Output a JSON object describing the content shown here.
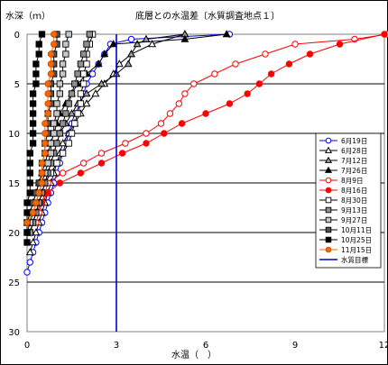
{
  "chart_data": {
    "type": "line",
    "title": "底層との水温差〔水質調査地点１〕",
    "ylabel": "水深（ｍ）",
    "xlabel": "水温（　）",
    "xlim": [
      0,
      12
    ],
    "ylim": [
      0,
      30
    ],
    "y_inverted": true,
    "x_ticks": [
      0,
      3,
      6,
      9,
      12
    ],
    "y_ticks": [
      0,
      5,
      10,
      15,
      20,
      25,
      30
    ],
    "grid": "horizontal",
    "legend_position": "right",
    "target_line": {
      "name": "水質目標",
      "x": 3,
      "color": "#0000cc"
    },
    "series": [
      {
        "name": "6月19日",
        "color": "#0000ff",
        "marker": "circle-open",
        "points": [
          [
            6.8,
            0
          ],
          [
            3.5,
            0.5
          ],
          [
            2.8,
            1
          ],
          [
            2.6,
            2
          ],
          [
            2.4,
            3
          ],
          [
            2.2,
            4
          ],
          [
            2.0,
            5
          ],
          [
            1.9,
            6
          ],
          [
            1.8,
            7
          ],
          [
            1.6,
            8
          ],
          [
            1.5,
            9
          ],
          [
            1.4,
            10
          ],
          [
            1.3,
            11
          ],
          [
            1.2,
            12
          ],
          [
            1.1,
            13
          ],
          [
            1.0,
            14
          ],
          [
            0.9,
            15
          ],
          [
            0.8,
            16
          ],
          [
            0.7,
            17
          ],
          [
            0.6,
            18
          ],
          [
            0.5,
            19
          ],
          [
            0.4,
            20
          ],
          [
            0.3,
            21
          ],
          [
            0.2,
            22
          ],
          [
            0.1,
            23
          ],
          [
            0,
            24
          ]
        ]
      },
      {
        "name": "6月28日",
        "color": "#000000",
        "marker": "triangle-open",
        "points": [
          [
            5.3,
            0
          ],
          [
            4.2,
            1
          ],
          [
            3.5,
            2
          ],
          [
            3.1,
            3
          ],
          [
            2.9,
            4
          ],
          [
            2.6,
            5
          ],
          [
            2.3,
            6
          ],
          [
            2.0,
            7
          ],
          [
            1.8,
            8
          ],
          [
            1.6,
            9
          ],
          [
            1.4,
            10
          ],
          [
            1.2,
            11
          ],
          [
            1.1,
            12
          ],
          [
            1.0,
            13
          ],
          [
            0.9,
            14
          ],
          [
            0.8,
            15
          ],
          [
            0.7,
            16
          ],
          [
            0.6,
            17
          ],
          [
            0.5,
            18
          ],
          [
            0.4,
            19
          ],
          [
            0.3,
            20
          ],
          [
            0.2,
            21
          ],
          [
            0.1,
            22
          ]
        ]
      },
      {
        "name": "7月12日",
        "color": "#000000",
        "marker": "triangle-gray",
        "points": [
          [
            5.3,
            0
          ],
          [
            4.0,
            0.5
          ],
          [
            3.7,
            1
          ],
          [
            3.5,
            2
          ],
          [
            3.4,
            3
          ],
          [
            3.0,
            4
          ],
          [
            2.5,
            5
          ],
          [
            2.0,
            6
          ],
          [
            1.7,
            7
          ],
          [
            1.5,
            8
          ],
          [
            1.3,
            9
          ],
          [
            1.1,
            10
          ],
          [
            1.0,
            11
          ],
          [
            0.9,
            12
          ],
          [
            0.8,
            13
          ],
          [
            0.7,
            14
          ],
          [
            0.6,
            15
          ],
          [
            0.5,
            16
          ],
          [
            0.4,
            17
          ],
          [
            0.3,
            18
          ],
          [
            0.2,
            19
          ],
          [
            0.1,
            20
          ]
        ]
      },
      {
        "name": "7月26日",
        "color": "#000000",
        "marker": "triangle-filled",
        "points": [
          [
            6.7,
            0
          ],
          [
            5.3,
            0.5
          ],
          [
            2.9,
            1
          ],
          [
            2.6,
            2
          ],
          [
            2.4,
            3
          ],
          [
            2.0,
            4
          ],
          [
            1.7,
            5
          ],
          [
            1.5,
            6
          ],
          [
            1.3,
            7
          ],
          [
            1.1,
            8
          ],
          [
            1.0,
            9
          ],
          [
            0.9,
            10
          ],
          [
            0.8,
            11
          ],
          [
            0.7,
            12
          ],
          [
            0.6,
            13
          ],
          [
            0.5,
            14
          ],
          [
            0.4,
            15
          ],
          [
            0.3,
            16
          ],
          [
            0.2,
            17
          ],
          [
            0.1,
            18
          ]
        ]
      },
      {
        "name": "8月9日",
        "color": "#ff0000",
        "marker": "circle-open",
        "points": [
          [
            12.1,
            0
          ],
          [
            11.0,
            0.5
          ],
          [
            9.0,
            1
          ],
          [
            8.0,
            2
          ],
          [
            7.0,
            3
          ],
          [
            6.3,
            4
          ],
          [
            5.6,
            5
          ],
          [
            5.3,
            6
          ],
          [
            5.1,
            7
          ],
          [
            4.8,
            8
          ],
          [
            4.5,
            9
          ],
          [
            4.0,
            10
          ],
          [
            3.3,
            11
          ],
          [
            2.5,
            12
          ],
          [
            1.9,
            13
          ],
          [
            1.2,
            14
          ],
          [
            0.7,
            15
          ],
          [
            0.6,
            16
          ],
          [
            0.5,
            17
          ],
          [
            0.4,
            18
          ],
          [
            0.3,
            19
          ]
        ]
      },
      {
        "name": "8月16日",
        "color": "#ff0000",
        "marker": "circle-filled",
        "points": [
          [
            12.0,
            0
          ],
          [
            10.5,
            1
          ],
          [
            9.5,
            2
          ],
          [
            8.8,
            3
          ],
          [
            8.2,
            4
          ],
          [
            7.8,
            5
          ],
          [
            7.4,
            6
          ],
          [
            6.8,
            7
          ],
          [
            6.0,
            8
          ],
          [
            5.2,
            9
          ],
          [
            4.6,
            10
          ],
          [
            4.0,
            11
          ],
          [
            3.2,
            12
          ],
          [
            2.5,
            13
          ],
          [
            1.8,
            14
          ],
          [
            1.1,
            15
          ],
          [
            0.7,
            16
          ],
          [
            0.5,
            17
          ],
          [
            0.3,
            18
          ]
        ]
      },
      {
        "name": "8月30日",
        "color": "#000000",
        "marker": "square-open",
        "points": [
          [
            2.2,
            0
          ],
          [
            2.1,
            1
          ],
          [
            2.0,
            2
          ],
          [
            2.0,
            3
          ],
          [
            1.9,
            4
          ],
          [
            1.9,
            5
          ],
          [
            1.8,
            6
          ],
          [
            1.8,
            7
          ],
          [
            1.7,
            8
          ],
          [
            1.6,
            9
          ],
          [
            1.5,
            10
          ],
          [
            1.4,
            11
          ],
          [
            1.2,
            12
          ],
          [
            1.0,
            13
          ],
          [
            0.8,
            14
          ],
          [
            0.6,
            15
          ],
          [
            0.5,
            16
          ],
          [
            0.4,
            17
          ],
          [
            0.3,
            18
          ],
          [
            0.2,
            19
          ],
          [
            0.1,
            20
          ]
        ]
      },
      {
        "name": "9月13日",
        "color": "#000000",
        "marker": "square-gray",
        "points": [
          [
            2.1,
            0
          ],
          [
            2.0,
            1
          ],
          [
            1.9,
            2
          ],
          [
            1.8,
            3
          ],
          [
            1.7,
            4
          ],
          [
            1.6,
            5
          ],
          [
            1.5,
            6
          ],
          [
            1.4,
            7
          ],
          [
            1.3,
            8
          ],
          [
            1.2,
            9
          ],
          [
            1.1,
            10
          ],
          [
            1.0,
            11
          ],
          [
            0.9,
            12
          ],
          [
            0.8,
            13
          ],
          [
            0.7,
            14
          ],
          [
            0.6,
            15
          ],
          [
            0.5,
            16
          ],
          [
            0.4,
            17
          ],
          [
            0.3,
            18
          ],
          [
            0.2,
            19
          ],
          [
            0.1,
            20
          ]
        ]
      },
      {
        "name": "9月27日",
        "color": "#000000",
        "marker": "square-lightgray",
        "points": [
          [
            1.4,
            0
          ],
          [
            1.3,
            1
          ],
          [
            1.3,
            2
          ],
          [
            1.2,
            3
          ],
          [
            1.2,
            4
          ],
          [
            1.1,
            5
          ],
          [
            1.1,
            6
          ],
          [
            1.0,
            7
          ],
          [
            1.0,
            8
          ],
          [
            0.9,
            9
          ],
          [
            0.9,
            10
          ],
          [
            0.8,
            11
          ],
          [
            0.8,
            12
          ],
          [
            0.7,
            13
          ],
          [
            0.6,
            14
          ],
          [
            0.5,
            15
          ],
          [
            0.4,
            16
          ],
          [
            0.3,
            17
          ],
          [
            0.2,
            18
          ],
          [
            0.1,
            19
          ],
          [
            0,
            20
          ]
        ]
      },
      {
        "name": "10月11日",
        "color": "#000000",
        "marker": "square-darkgray",
        "points": [
          [
            1.0,
            0
          ],
          [
            1.0,
            1
          ],
          [
            0.9,
            2
          ],
          [
            0.9,
            3
          ],
          [
            0.9,
            4
          ],
          [
            0.8,
            5
          ],
          [
            0.8,
            6
          ],
          [
            0.8,
            7
          ],
          [
            0.7,
            8
          ],
          [
            0.7,
            9
          ],
          [
            0.7,
            10
          ],
          [
            0.6,
            11
          ],
          [
            0.6,
            12
          ],
          [
            0.5,
            13
          ],
          [
            0.5,
            14
          ],
          [
            0.4,
            15
          ],
          [
            0.3,
            16
          ],
          [
            0.2,
            17
          ],
          [
            0.1,
            18
          ],
          [
            0,
            19
          ]
        ]
      },
      {
        "name": "10月25日",
        "color": "#000000",
        "marker": "square-filled",
        "points": [
          [
            0.5,
            0
          ],
          [
            0.4,
            1
          ],
          [
            0.4,
            2
          ],
          [
            0.3,
            3
          ],
          [
            0.3,
            4
          ],
          [
            0.3,
            5
          ],
          [
            0.2,
            6
          ],
          [
            0.2,
            7
          ],
          [
            0.2,
            8
          ],
          [
            0.2,
            9
          ],
          [
            0.2,
            10
          ],
          [
            0.2,
            11
          ],
          [
            0.1,
            12
          ],
          [
            0.1,
            13
          ],
          [
            0.1,
            14
          ],
          [
            0.1,
            15
          ],
          [
            0.1,
            16
          ],
          [
            0,
            17
          ],
          [
            0,
            18
          ],
          [
            0,
            19
          ],
          [
            0,
            20
          ],
          [
            0,
            21
          ]
        ]
      },
      {
        "name": "11月15日",
        "color": "#ff6600",
        "marker": "circle-orange",
        "points": [
          [
            0.9,
            0
          ],
          [
            0.9,
            1
          ],
          [
            0.8,
            2
          ],
          [
            0.8,
            3
          ],
          [
            0.8,
            4
          ],
          [
            0.7,
            5
          ],
          [
            0.7,
            6
          ],
          [
            0.7,
            7
          ],
          [
            0.7,
            8
          ],
          [
            0.6,
            9
          ],
          [
            0.6,
            10
          ],
          [
            0.6,
            11
          ],
          [
            0.6,
            12
          ],
          [
            0.5,
            13
          ],
          [
            0.5,
            14
          ],
          [
            0.5,
            15
          ],
          [
            0.4,
            16
          ],
          [
            0.3,
            17
          ],
          [
            0.2,
            18
          ],
          [
            0,
            19
          ]
        ]
      }
    ]
  }
}
